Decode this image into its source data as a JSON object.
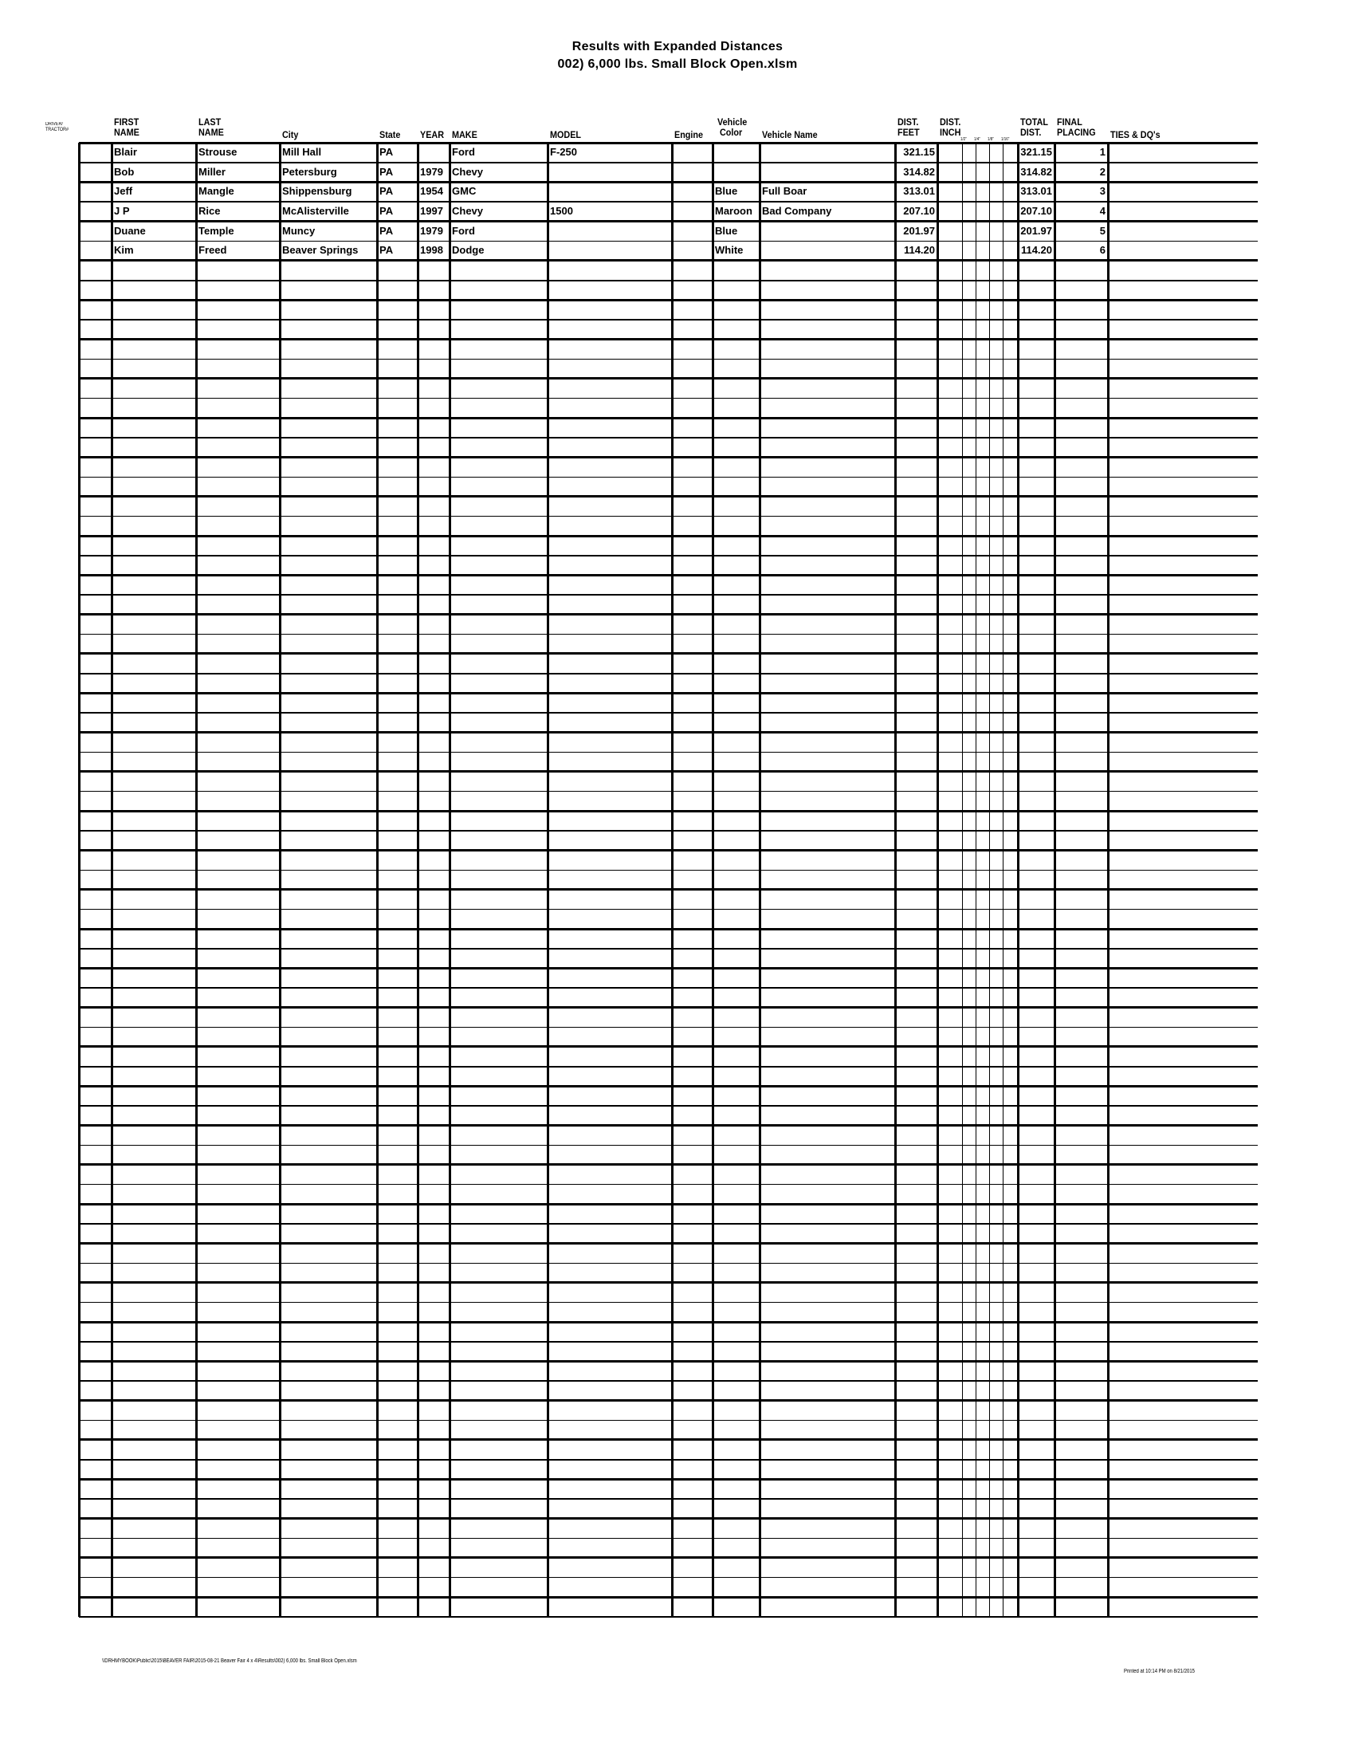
{
  "title": "Results with Expanded Distances",
  "subtitle": "002) 6,000 lbs. Small Block Open.xlsm",
  "columns": [
    {
      "key": "driver_tractor",
      "label": "DRIVER/\nTRACTOR#"
    },
    {
      "key": "first",
      "label": "FIRST\nNAME"
    },
    {
      "key": "last",
      "label": "LAST\nNAME"
    },
    {
      "key": "city",
      "label": "City"
    },
    {
      "key": "state",
      "label": "State"
    },
    {
      "key": "year",
      "label": "YEAR"
    },
    {
      "key": "make",
      "label": "MAKE"
    },
    {
      "key": "model",
      "label": "MODEL"
    },
    {
      "key": "engine",
      "label": "Engine"
    },
    {
      "key": "color",
      "label": "Vehicle\n Color"
    },
    {
      "key": "vname",
      "label": "Vehicle Name"
    },
    {
      "key": "feet",
      "label": "DIST.\nFEET"
    },
    {
      "key": "inch",
      "label": "DIST.\nINCH"
    },
    {
      "key": "half",
      "label": "1/2\""
    },
    {
      "key": "quarter",
      "label": "1/4\""
    },
    {
      "key": "eighth",
      "label": "1/8\""
    },
    {
      "key": "sixteenth",
      "label": "1/16\""
    },
    {
      "key": "total",
      "label": "TOTAL\nDIST."
    },
    {
      "key": "placing",
      "label": "FINAL\nPLACING"
    },
    {
      "key": "ties",
      "label": "TIES & DQ's"
    }
  ],
  "rows": [
    {
      "first": "Blair",
      "last": "Strouse",
      "city": "Mill Hall",
      "state": "PA",
      "year": "",
      "make": "Ford",
      "model": "F-250",
      "engine": "",
      "color": "",
      "vname": "",
      "feet": "321.15",
      "total": "321.15",
      "placing": "1"
    },
    {
      "first": "Bob",
      "last": "Miller",
      "city": "Petersburg",
      "state": "PA",
      "year": "1979",
      "make": "Chevy",
      "model": "",
      "engine": "",
      "color": "",
      "vname": "",
      "feet": "314.82",
      "total": "314.82",
      "placing": "2"
    },
    {
      "first": "Jeff",
      "last": "Mangle",
      "city": "Shippensburg",
      "state": "PA",
      "year": "1954",
      "make": "GMC",
      "model": "",
      "engine": "",
      "color": "Blue",
      "vname": "Full Boar",
      "feet": "313.01",
      "total": "313.01",
      "placing": "3"
    },
    {
      "first": "J P",
      "last": "Rice",
      "city": "McAlisterville",
      "state": "PA",
      "year": "1997",
      "make": "Chevy",
      "model": "1500",
      "engine": "",
      "color": "Maroon",
      "vname": "Bad Company",
      "feet": "207.10",
      "total": "207.10",
      "placing": "4"
    },
    {
      "first": "Duane",
      "last": "Temple",
      "city": "Muncy",
      "state": "PA",
      "year": "1979",
      "make": "Ford",
      "model": "",
      "engine": "",
      "color": "Blue",
      "vname": "",
      "feet": "201.97",
      "total": "201.97",
      "placing": "5"
    },
    {
      "first": "Kim",
      "last": "Freed",
      "city": "Beaver Springs",
      "state": "PA",
      "year": "1998",
      "make": "Dodge",
      "model": "",
      "engine": "",
      "color": "White",
      "vname": "",
      "feet": "114.20",
      "total": "114.20",
      "placing": "6"
    }
  ],
  "footer": {
    "path": "\\\\DRHMYBOOK\\Public\\2015\\BEAVER FAIR\\2015-08-21 Beaver Fair 4 x 4\\Results\\002) 6,000 lbs. Small Block Open.xlsm",
    "printed": "Printed at 10:14 PM on 8/21/2015"
  }
}
